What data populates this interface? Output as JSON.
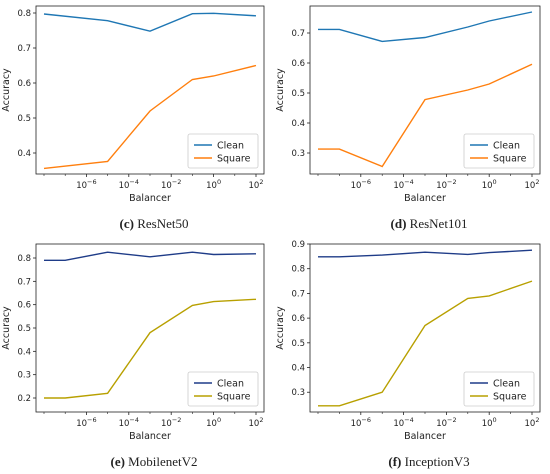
{
  "chart_data": [
    {
      "type": "line",
      "caption_label": "(c)",
      "caption_text": "ResNet50",
      "xlabel": "Balancer",
      "ylabel": "Accuracy",
      "xscale": "log",
      "xlim": [
        1e-08,
        100.0
      ],
      "ylim": [
        0.34,
        0.82
      ],
      "yticks": [
        0.4,
        0.5,
        0.6,
        0.7,
        0.8
      ],
      "xticks": [
        -6,
        -4,
        -2,
        0,
        2
      ],
      "legend_position": "bottom-right",
      "x": [
        1e-08,
        1e-05,
        0.001,
        0.1,
        1,
        100
      ],
      "series": [
        {
          "name": "Clean",
          "color": "#1f77b4",
          "values": [
            0.797,
            0.778,
            0.748,
            0.798,
            0.799,
            0.792
          ]
        },
        {
          "name": "Square",
          "color": "#ff7f0e",
          "values": [
            0.356,
            0.376,
            0.52,
            0.61,
            0.62,
            0.65
          ]
        }
      ]
    },
    {
      "type": "line",
      "caption_label": "(d)",
      "caption_text": "ResNet101",
      "xlabel": "Balancer",
      "ylabel": "Accuracy",
      "xscale": "log",
      "xlim": [
        1e-08,
        100.0
      ],
      "ylim": [
        0.23,
        0.79
      ],
      "yticks": [
        0.3,
        0.4,
        0.5,
        0.6,
        0.7
      ],
      "xticks": [
        -6,
        -4,
        -2,
        0,
        2
      ],
      "legend_position": "bottom-right",
      "x": [
        1e-08,
        1e-07,
        1e-05,
        0.001,
        0.1,
        1,
        100
      ],
      "series": [
        {
          "name": "Clean",
          "color": "#1f77b4",
          "values": [
            0.712,
            0.712,
            0.672,
            0.685,
            0.72,
            0.74,
            0.77
          ]
        },
        {
          "name": "Square",
          "color": "#ff7f0e",
          "values": [
            0.313,
            0.313,
            0.255,
            0.478,
            0.51,
            0.53,
            0.596
          ]
        }
      ]
    },
    {
      "type": "line",
      "caption_label": "(e)",
      "caption_text": "MobilenetV2",
      "xlabel": "Balancer",
      "ylabel": "Accuracy",
      "xscale": "log",
      "xlim": [
        1e-08,
        100.0
      ],
      "ylim": [
        0.14,
        0.86
      ],
      "yticks": [
        0.2,
        0.3,
        0.4,
        0.5,
        0.6,
        0.7,
        0.8
      ],
      "xticks": [
        -6,
        -4,
        -2,
        0,
        2
      ],
      "legend_position": "bottom-right",
      "x": [
        1e-08,
        1e-07,
        1e-05,
        0.001,
        0.1,
        1,
        100
      ],
      "series": [
        {
          "name": "Clean",
          "color": "#1f3c88",
          "values": [
            0.79,
            0.79,
            0.825,
            0.805,
            0.825,
            0.815,
            0.818
          ]
        },
        {
          "name": "Square",
          "color": "#b8a000",
          "values": [
            0.2,
            0.2,
            0.22,
            0.48,
            0.597,
            0.613,
            0.623
          ]
        }
      ]
    },
    {
      "type": "line",
      "caption_label": "(f)",
      "caption_text": "InceptionV3",
      "xlabel": "Balancer",
      "ylabel": "Accuracy",
      "xscale": "log",
      "xlim": [
        1e-08,
        100.0
      ],
      "ylim": [
        0.22,
        0.9
      ],
      "yticks": [
        0.3,
        0.4,
        0.5,
        0.6,
        0.7,
        0.8,
        0.9
      ],
      "xticks": [
        -6,
        -4,
        -2,
        0,
        2
      ],
      "legend_position": "bottom-right",
      "x": [
        1e-08,
        1e-07,
        1e-05,
        0.001,
        0.1,
        1,
        100
      ],
      "series": [
        {
          "name": "Clean",
          "color": "#1f3c88",
          "values": [
            0.848,
            0.848,
            0.855,
            0.867,
            0.858,
            0.865,
            0.875
          ]
        },
        {
          "name": "Square",
          "color": "#b8a000",
          "values": [
            0.245,
            0.245,
            0.3,
            0.57,
            0.68,
            0.69,
            0.75
          ]
        }
      ]
    }
  ]
}
